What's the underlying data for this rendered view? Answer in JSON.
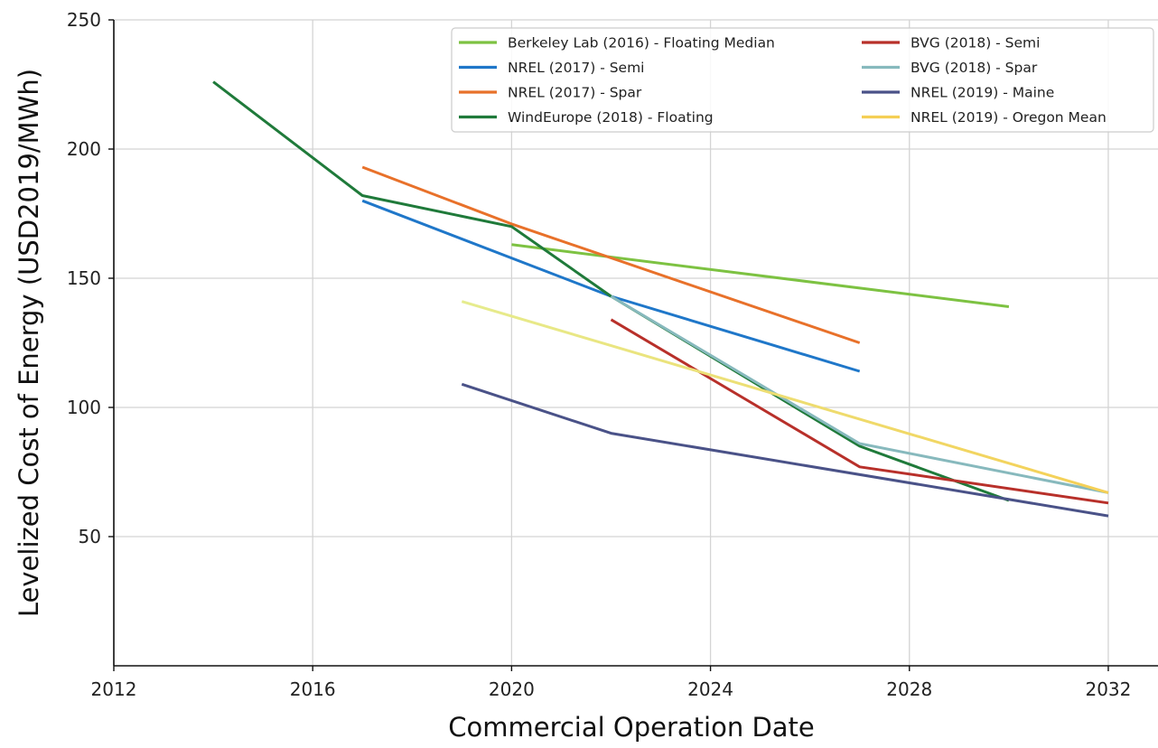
{
  "chart_data": {
    "type": "line",
    "xlabel": "Commercial Operation Date",
    "ylabel": "Levelized Cost of Energy (USD2019/MWh)",
    "xlim": [
      2012,
      2033
    ],
    "ylim": [
      0,
      250
    ],
    "xticks": [
      2012,
      2016,
      2020,
      2024,
      2028,
      2032
    ],
    "yticks": [
      50,
      100,
      150,
      200,
      250
    ],
    "grid": true,
    "legend_position": "top-right",
    "legend_columns": 2,
    "series": [
      {
        "name": "Berkeley Lab (2016) - Floating Median",
        "color": "#7dc242",
        "points": [
          [
            2020,
            163
          ],
          [
            2030,
            139
          ]
        ]
      },
      {
        "name": "NREL (2017) - Semi",
        "color": "#1f77c9",
        "points": [
          [
            2017,
            180
          ],
          [
            2022,
            143
          ],
          [
            2027,
            114
          ]
        ]
      },
      {
        "name": "NREL (2017) - Spar",
        "color": "#e8712a",
        "points": [
          [
            2017,
            193
          ],
          [
            2020,
            171
          ],
          [
            2027,
            125
          ]
        ]
      },
      {
        "name": "WindEurope (2018) - Floating",
        "color": "#1f7a3a",
        "points": [
          [
            2014,
            226
          ],
          [
            2017,
            182
          ],
          [
            2020,
            170
          ],
          [
            2022,
            143
          ],
          [
            2027,
            85
          ],
          [
            2030,
            64
          ]
        ]
      },
      {
        "name": "BVG (2018) - Semi",
        "color": "#b8302a",
        "points": [
          [
            2022,
            134
          ],
          [
            2027,
            77
          ],
          [
            2032,
            63
          ]
        ]
      },
      {
        "name": "BVG (2018) - Spar",
        "color": "#87b9bd",
        "points": [
          [
            2022,
            143
          ],
          [
            2027,
            86
          ],
          [
            2032,
            67
          ]
        ]
      },
      {
        "name": "NREL (2019) - Maine",
        "color": "#4a5288",
        "points": [
          [
            2019,
            109
          ],
          [
            2022,
            90
          ],
          [
            2032,
            58
          ]
        ]
      },
      {
        "name": "NREL (2019) - Oregon Mean",
        "color": "#f5cf55",
        "gradient_start_color": "#e6ec8e",
        "points": [
          [
            2019,
            141
          ],
          [
            2032,
            67
          ]
        ]
      }
    ]
  }
}
